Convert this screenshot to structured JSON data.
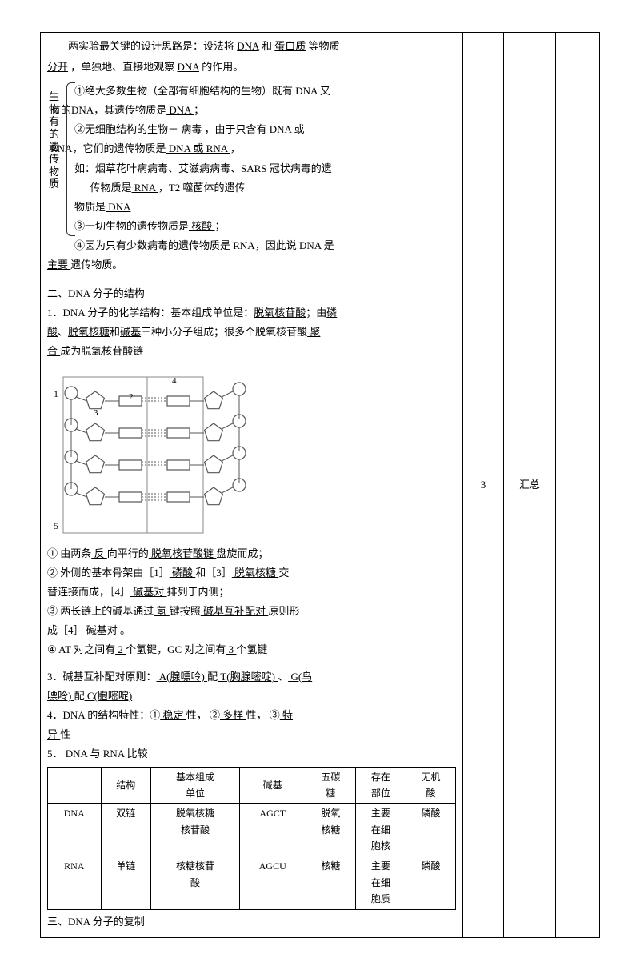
{
  "intro": {
    "line1a": "两实验最关键的设计思路是：设法将",
    "u1": "DNA",
    "line1b": "和",
    "u2": "蛋白质",
    "line1c": "等物质",
    "line2a": "分开",
    "line2b": "，单独地、直接地观察",
    "u3": "DNA",
    "line2c": "的作用。"
  },
  "vlabel": "生物有的遗传物质",
  "bracket": {
    "p1a": "①绝大多数生物（全部有细胞结构的生物）既有 DNA 又",
    "p1b": "有的DNA，其遗传物质是",
    "p1u": "  DNA  ",
    "p1c": "；",
    "p2a": "②无细胞结构的生物－",
    "p2u1": "    病毒    ",
    "p2b": "，由于只含有 DNA 或",
    "p2c": "RNA，它们的遗传物质是",
    "p2u2": " DNA 或 RNA   ",
    "p2d": "，",
    "p3a": "如：烟草花叶病病毒、艾滋病病毒、SARS 冠状病毒的遗",
    "p3b": "      传物质是",
    "p3u1": "   RNA    ",
    "p3c": "，T2 噬菌体的遗传",
    "p3d": "物质是",
    "p3u2": "    DNA",
    "p4a": "③一切生物的遗传物质是",
    "p4u": "     核酸     ",
    "p4b": "；",
    "p5a": "④因为只有少数病毒的遗传物质是 RNA，因此说 DNA 是",
    "p5u": "  主要  ",
    "p5b": "遗传物质。"
  },
  "section2": {
    "title": "二、DNA 分子的结构",
    "l1a": "1．DNA 分子的化学结构：基本组成单位是：",
    "l1u1": "脱氧核苷酸",
    "l1b": "；由",
    "l1u2": "磷",
    "l2u1": "酸",
    "l2a": "、",
    "l2u2": "脱氧核糖",
    "l2b": "和",
    "l2u3": "碱基",
    "l2c": "三种小分子组成；很多个脱氧核苷酸",
    "l2u4": "   聚",
    "l3u1": "合  ",
    "l3a": "成为脱氧核苷酸链"
  },
  "points": {
    "p1a": "① 由两条",
    "p1u1": " 反 ",
    "p1b": "向平行的",
    "p1u2": " 脱氧核苷酸链 ",
    "p1c": "盘旋而成；",
    "p2a": "② 外侧的基本骨架由［1］",
    "p2u1": "  磷酸  ",
    "p2b": "和［3］",
    "p2u2": "  脱氧核糖    ",
    "p2c": "交",
    "p2d": "替连接而成，［4］",
    "p2u3": " 碱基对  ",
    "p2e": "排列于内侧；",
    "p3a": "③ 两长链上的碱基通过",
    "p3u1": " 氢  ",
    "p3b": "键按照",
    "p3u2": "  碱基互补配对 ",
    "p3c": "原则形",
    "p3d": "成［4］",
    "p3u3": "  碱基对  ",
    "p3e": "。",
    "p4a": "④  AT 对之间有",
    "p4u1": " 2 ",
    "p4b": "个氢键，GC 对之间有",
    "p4u2": " 3 ",
    "p4c": "个氢键"
  },
  "pair": {
    "a": "3．碱基互补配对原则：",
    "u1": " A(腺嘌呤)  ",
    "b": "配",
    "u2": " T(胸腺嘧啶) ",
    "c": "、",
    "u3": " G(鸟",
    "u4": "嘌呤) ",
    "d": "配",
    "u5": " C(胞嘧啶)"
  },
  "feat": {
    "a": "4．DNA 的结构特性：①",
    "u1": " 稳定 ",
    "b": "性，   ②",
    "u2": " 多样 ",
    "c": "性，   ③",
    "u3": "  特",
    "u4": "异  ",
    "d": "性"
  },
  "cmp_title": "5．  DNA 与 RNA 比较",
  "table": {
    "headers": [
      "",
      "结构",
      "基本组成\n单位",
      "碱基",
      "五碳\n糖",
      "存在\n部位",
      "无机\n酸"
    ],
    "rows": [
      [
        "DNA",
        "双链",
        "脱氧核糖\n核苷酸",
        "AGCT",
        "脱氧\n核糖",
        "主要\n在细\n胞核",
        "磷酸"
      ],
      [
        "RNA",
        "单链",
        "核糖核苷\n酸",
        "AGCU",
        "核糖",
        "主要\n在细\n胞质",
        "磷酸"
      ]
    ]
  },
  "section3": "三、DNA 分子的复制",
  "side_num": "3",
  "side_note": "汇总",
  "svg": {
    "labels": {
      "l1": "1",
      "l2": "2",
      "l3": "3",
      "l4": "4",
      "l5": "5"
    },
    "stroke": "#555555",
    "box_stroke": "#888888"
  }
}
